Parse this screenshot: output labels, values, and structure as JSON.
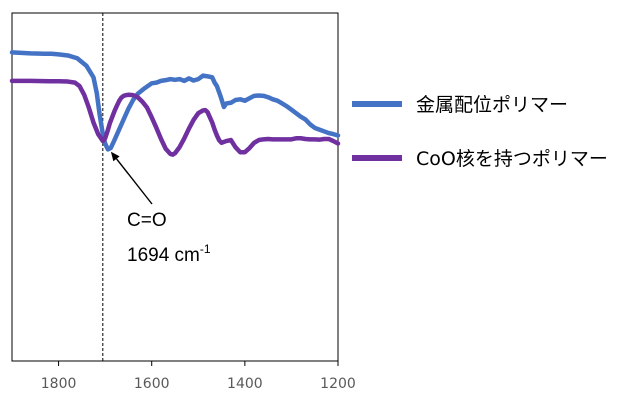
{
  "chart_data": {
    "type": "line",
    "title": "",
    "xlabel": "",
    "ylabel": "",
    "x_reversed": true,
    "xlim": [
      1900,
      1200
    ],
    "ylim": [
      0,
      1
    ],
    "x_ticks": [
      1800,
      1600,
      1400,
      1200
    ],
    "x_tick_labels": [
      "1800",
      "1600",
      "1400",
      "1200"
    ],
    "grid": false,
    "legend_position": "right",
    "series": [
      {
        "name": "金属配位ポリマー",
        "color": "#4472C4",
        "x": [
          1900,
          1860,
          1830,
          1815,
          1800,
          1780,
          1760,
          1740,
          1725,
          1718,
          1712,
          1706,
          1700,
          1694,
          1688,
          1680,
          1670,
          1660,
          1650,
          1640,
          1630,
          1615,
          1600,
          1590,
          1580,
          1570,
          1560,
          1550,
          1540,
          1530,
          1520,
          1510,
          1500,
          1490,
          1480,
          1470,
          1465,
          1460,
          1452,
          1445,
          1440,
          1430,
          1420,
          1410,
          1400,
          1390,
          1380,
          1370,
          1360,
          1350,
          1340,
          1330,
          1320,
          1310,
          1300,
          1290,
          1280,
          1270,
          1260,
          1250,
          1240,
          1230,
          1220,
          1210,
          1200
        ],
        "y": [
          0.887,
          0.884,
          0.883,
          0.883,
          0.881,
          0.878,
          0.87,
          0.848,
          0.815,
          0.77,
          0.71,
          0.66,
          0.625,
          0.608,
          0.612,
          0.635,
          0.665,
          0.695,
          0.725,
          0.75,
          0.768,
          0.784,
          0.798,
          0.8,
          0.805,
          0.807,
          0.81,
          0.808,
          0.81,
          0.805,
          0.812,
          0.806,
          0.81,
          0.82,
          0.818,
          0.815,
          0.8,
          0.79,
          0.76,
          0.73,
          0.74,
          0.742,
          0.75,
          0.752,
          0.748,
          0.755,
          0.762,
          0.763,
          0.762,
          0.758,
          0.752,
          0.748,
          0.74,
          0.732,
          0.722,
          0.712,
          0.702,
          0.694,
          0.68,
          0.67,
          0.665,
          0.66,
          0.655,
          0.652,
          0.648
        ]
      },
      {
        "name": "CoO核を持つポリマー",
        "color": "#7030A0",
        "x": [
          1900,
          1860,
          1820,
          1800,
          1780,
          1765,
          1755,
          1745,
          1735,
          1725,
          1715,
          1705,
          1700,
          1695,
          1690,
          1680,
          1675,
          1670,
          1665,
          1660,
          1655,
          1650,
          1640,
          1630,
          1620,
          1610,
          1600,
          1590,
          1580,
          1570,
          1560,
          1555,
          1550,
          1540,
          1530,
          1520,
          1510,
          1500,
          1490,
          1485,
          1480,
          1475,
          1470,
          1465,
          1460,
          1455,
          1450,
          1440,
          1430,
          1420,
          1410,
          1400,
          1390,
          1380,
          1370,
          1360,
          1350,
          1340,
          1330,
          1320,
          1310,
          1300,
          1290,
          1280,
          1270,
          1260,
          1250,
          1240,
          1230,
          1220,
          1210,
          1200
        ],
        "y": [
          0.805,
          0.805,
          0.804,
          0.804,
          0.803,
          0.8,
          0.79,
          0.765,
          0.728,
          0.685,
          0.652,
          0.632,
          0.64,
          0.66,
          0.683,
          0.718,
          0.733,
          0.747,
          0.757,
          0.762,
          0.764,
          0.765,
          0.764,
          0.758,
          0.745,
          0.728,
          0.7,
          0.67,
          0.638,
          0.61,
          0.595,
          0.593,
          0.597,
          0.615,
          0.64,
          0.668,
          0.693,
          0.712,
          0.72,
          0.721,
          0.715,
          0.7,
          0.685,
          0.665,
          0.648,
          0.634,
          0.627,
          0.632,
          0.635,
          0.614,
          0.6,
          0.6,
          0.612,
          0.627,
          0.635,
          0.637,
          0.638,
          0.637,
          0.637,
          0.637,
          0.637,
          0.637,
          0.64,
          0.64,
          0.638,
          0.637,
          0.637,
          0.636,
          0.638,
          0.638,
          0.632,
          0.625
        ]
      }
    ],
    "reference_line": {
      "x": 1705,
      "style": "dashed",
      "color": "#000000"
    },
    "annotation": {
      "line1": "C=O",
      "line2_main": "1694 cm",
      "line2_sup": "-1",
      "arrow_to": {
        "x": 1694,
        "y": 0.61
      }
    }
  }
}
